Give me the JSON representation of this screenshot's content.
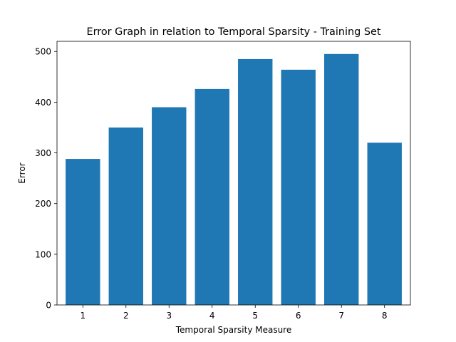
{
  "chart_data": {
    "type": "bar",
    "title": "Error Graph in relation to Temporal Sparsity - Training Set",
    "xlabel": "Temporal Sparsity Measure",
    "ylabel": "Error",
    "categories": [
      "1",
      "2",
      "3",
      "4",
      "5",
      "6",
      "7",
      "8"
    ],
    "values": [
      288,
      350,
      390,
      426,
      485,
      464,
      495,
      320
    ],
    "ylim": [
      0,
      520
    ],
    "yticks": [
      0,
      100,
      200,
      300,
      400,
      500
    ],
    "bar_color": "#1f77b4",
    "grid": false,
    "legend": "none"
  }
}
